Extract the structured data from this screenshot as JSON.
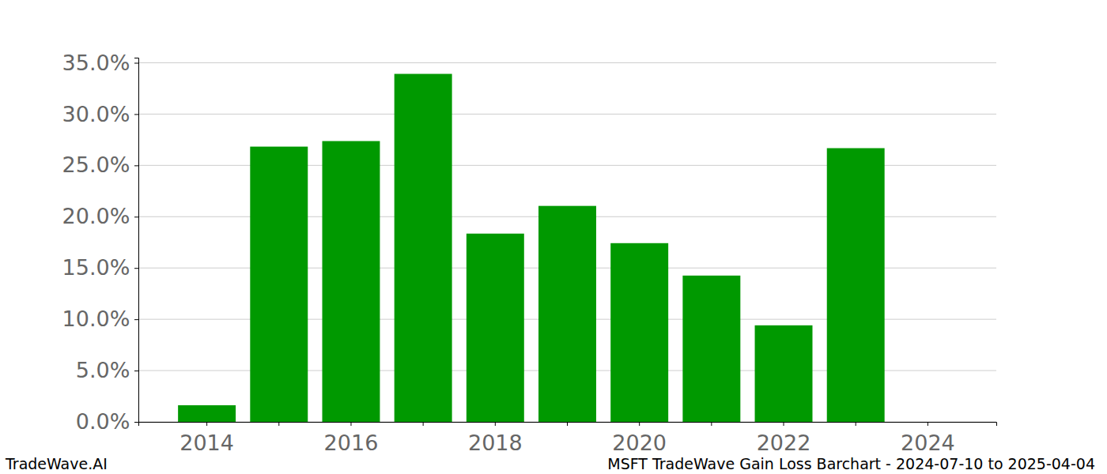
{
  "chart_data": {
    "type": "bar",
    "title": "MSFT TradeWave Gain Loss Barchart - 2024-07-10 to 2025-04-04",
    "annotations": [
      "TradeWave.AI"
    ],
    "categories": [
      "2014",
      null,
      "2016",
      null,
      "2018",
      null,
      "2020",
      null,
      "2022",
      null,
      "2024"
    ],
    "values": [
      1.62,
      26.83,
      27.37,
      33.92,
      18.35,
      21.05,
      17.42,
      14.26,
      9.41,
      26.68,
      0
    ],
    "color": "#009900",
    "ylim": [
      0,
      35.5
    ],
    "yticks": [
      {
        "value": 0,
        "label": "0.0%"
      },
      {
        "value": 5,
        "label": "5.0%"
      },
      {
        "value": 10,
        "label": "10.0%"
      },
      {
        "value": 15,
        "label": "15.0%"
      },
      {
        "value": 20,
        "label": "20.0%"
      },
      {
        "value": 25,
        "label": "25.0%"
      },
      {
        "value": 30,
        "label": "30.0%"
      },
      {
        "value": 35,
        "label": "35.0%"
      }
    ],
    "grid": true
  }
}
